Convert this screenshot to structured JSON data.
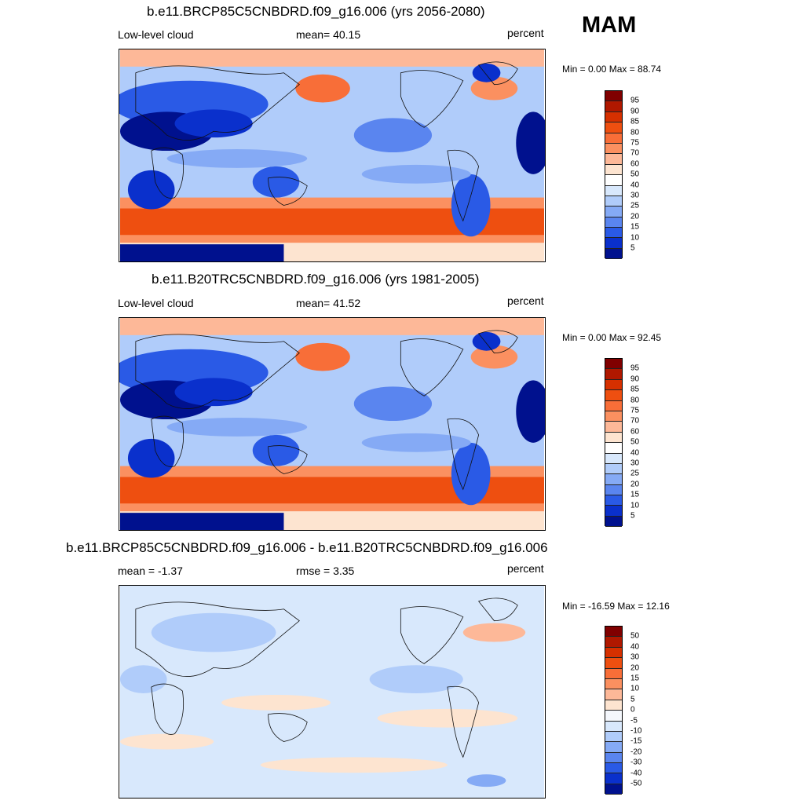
{
  "season": "MAM",
  "panels": [
    {
      "title": "b.e11.BRCP85C5CNBDRD.f09_g16.006 (yrs 2056-2080)",
      "left_label": "Low-level cloud",
      "center_label": "mean=  40.15",
      "right_label": "percent",
      "minmax": "Min =   0.00 Max =  88.74",
      "style": "field"
    },
    {
      "title": "b.e11.B20TRC5CNBDRD.f09_g16.006 (yrs 1981-2005)",
      "left_label": "Low-level cloud",
      "center_label": "mean=  41.52",
      "right_label": "percent",
      "minmax": "Min =   0.00 Max =  92.45",
      "style": "field"
    },
    {
      "title": "b.e11.BRCP85C5CNBDRD.f09_g16.006 - b.e11.B20TRC5CNBDRD.f09_g16.006",
      "left_label": "mean =  -1.37",
      "center_label": "rmse =   3.35",
      "right_label": "percent",
      "minmax": "Min = -16.59 Max =  12.16",
      "style": "diff"
    }
  ],
  "colorbars": {
    "field": {
      "levels": [
        "95",
        "90",
        "85",
        "80",
        "75",
        "70",
        "60",
        "50",
        "40",
        "30",
        "25",
        "20",
        "15",
        "10",
        "5"
      ],
      "colors": [
        "#800000",
        "#b01800",
        "#d63000",
        "#ee4f10",
        "#f86e38",
        "#fb9060",
        "#fdb898",
        "#fde4d0",
        "#ffffff",
        "#d8e8fc",
        "#b0ccfa",
        "#85aaf5",
        "#5a85ef",
        "#2a5ae6",
        "#0a30cc",
        "#00118e"
      ]
    },
    "diff": {
      "levels": [
        "50",
        "40",
        "30",
        "20",
        "15",
        "10",
        "5",
        "0",
        "-5",
        "-10",
        "-15",
        "-20",
        "-30",
        "-40",
        "-50"
      ],
      "colors": [
        "#800000",
        "#b01800",
        "#d63000",
        "#ee4f10",
        "#f86e38",
        "#fb9060",
        "#fdb898",
        "#fde4d0",
        "#f4f7fc",
        "#d8e8fc",
        "#b0ccfa",
        "#85aaf5",
        "#5a85ef",
        "#2a5ae6",
        "#0a30cc",
        "#00118e"
      ]
    }
  }
}
